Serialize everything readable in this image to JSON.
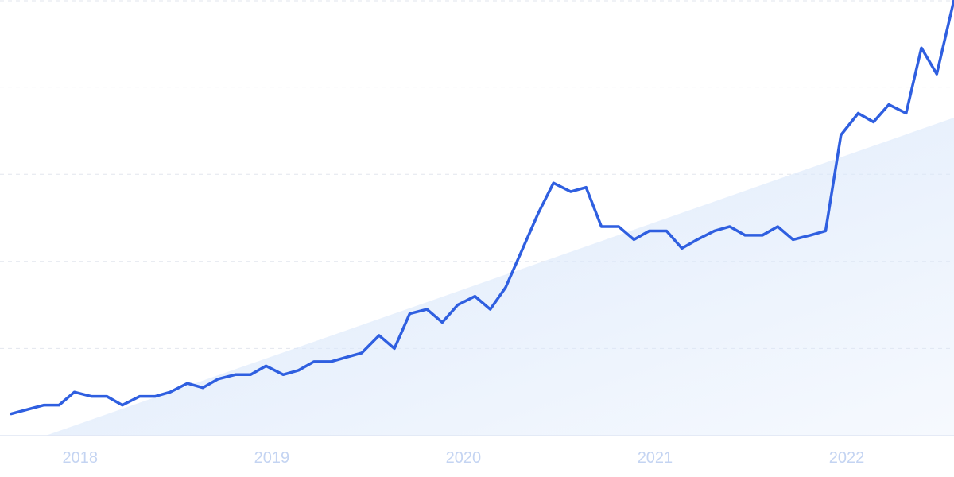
{
  "chart_data": {
    "type": "line",
    "title": "",
    "xlabel": "",
    "ylabel": "",
    "x_ticks": [
      {
        "label": "2018",
        "x": 2018.0
      },
      {
        "label": "2019",
        "x": 2019.0
      },
      {
        "label": "2020",
        "x": 2020.0
      },
      {
        "label": "2021",
        "x": 2021.0
      },
      {
        "label": "2022",
        "x": 2022.0
      }
    ],
    "xlim": [
      2017.64,
      2022.56
    ],
    "ylim": [
      0,
      100
    ],
    "y_gridlines": [
      20,
      40,
      60,
      80,
      100
    ],
    "y_tick_labels_shown": false,
    "grid": true,
    "legend": "none",
    "colors": {
      "line": "#2f5fe0",
      "trend_fill": "#dbe8fb",
      "grid": "#e2e6ee",
      "baseline": "#dfe6f3",
      "tick_text": "#c4d4f2"
    },
    "trend_area": {
      "start": {
        "x": 2017.82,
        "y": 0
      },
      "end": {
        "x": 2022.56,
        "y": 73
      }
    },
    "series": [
      {
        "x": [
          2017.64,
          2017.81,
          2017.89,
          2017.97,
          2018.06,
          2018.14,
          2018.22,
          2018.31,
          2018.39,
          2018.47,
          2018.56,
          2018.64,
          2018.72,
          2018.81,
          2018.89,
          2018.97,
          2019.06,
          2019.14,
          2019.22,
          2019.31,
          2019.39,
          2019.47,
          2019.56,
          2019.64,
          2019.72,
          2019.81,
          2019.89,
          2019.97,
          2020.06,
          2020.14,
          2020.22,
          2020.31,
          2020.39,
          2020.47,
          2020.56,
          2020.64,
          2020.72,
          2020.81,
          2020.89,
          2020.97,
          2021.06,
          2021.14,
          2021.22,
          2021.31,
          2021.39,
          2021.47,
          2021.56,
          2021.64,
          2021.72,
          2021.81,
          2021.89,
          2021.97,
          2022.06,
          2022.14,
          2022.22,
          2022.31,
          2022.39,
          2022.47,
          2022.56
        ],
        "values": [
          5,
          7,
          7,
          10,
          9,
          9,
          7,
          9,
          9,
          10,
          12,
          11,
          13,
          14,
          14,
          16,
          14,
          15,
          17,
          17,
          18,
          19,
          23,
          20,
          28,
          29,
          26,
          30,
          32,
          29,
          34,
          43,
          51,
          58,
          56,
          57,
          48,
          48,
          45,
          47,
          47,
          43,
          45,
          47,
          48,
          46,
          46,
          48,
          45,
          46,
          47,
          69,
          74,
          72,
          76,
          74,
          89,
          83,
          100
        ]
      }
    ]
  }
}
